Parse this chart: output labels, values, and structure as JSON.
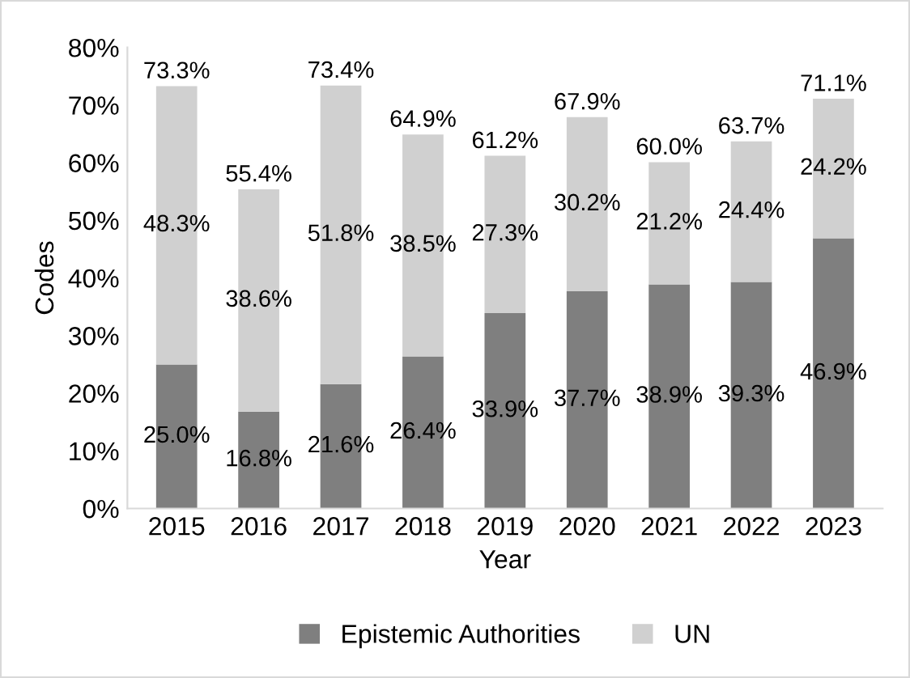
{
  "chart_data": {
    "type": "bar",
    "stacked": true,
    "xlabel": "Year",
    "ylabel": "Codes",
    "categories": [
      "2015",
      "2016",
      "2017",
      "2018",
      "2019",
      "2020",
      "2021",
      "2022",
      "2023"
    ],
    "series": [
      {
        "name": "Epistemic Authorities",
        "color": "#7f7f7f",
        "values": [
          25.0,
          16.8,
          21.6,
          26.4,
          33.9,
          37.7,
          38.9,
          39.3,
          46.9
        ],
        "value_labels": [
          "25.0%",
          "16.8%",
          "21.6%",
          "26.4%",
          "33.9%",
          "37.7%",
          "38.9%",
          "39.3%",
          "46.9%"
        ]
      },
      {
        "name": "UN",
        "color": "#d0d0d0",
        "values": [
          48.3,
          38.6,
          51.8,
          38.5,
          27.3,
          30.2,
          21.2,
          24.4,
          24.2
        ],
        "value_labels": [
          "48.3%",
          "38.6%",
          "51.8%",
          "38.5%",
          "27.3%",
          "30.2%",
          "21.2%",
          "24.4%",
          "24.2%"
        ]
      }
    ],
    "totals": [
      "73.3%",
      "55.4%",
      "73.4%",
      "64.9%",
      "61.2%",
      "67.9%",
      "60.0%",
      "63.7%",
      "71.1%"
    ],
    "ylim": [
      0,
      80
    ],
    "yticks": [
      {
        "value": 0,
        "label": "0%"
      },
      {
        "value": 10,
        "label": "10%"
      },
      {
        "value": 20,
        "label": "20%"
      },
      {
        "value": 30,
        "label": "30%"
      },
      {
        "value": 40,
        "label": "40%"
      },
      {
        "value": 50,
        "label": "50%"
      },
      {
        "value": 60,
        "label": "60%"
      },
      {
        "value": 70,
        "label": "70%"
      },
      {
        "value": 80,
        "label": "80%"
      }
    ],
    "grid": false,
    "legend": "bottom"
  }
}
